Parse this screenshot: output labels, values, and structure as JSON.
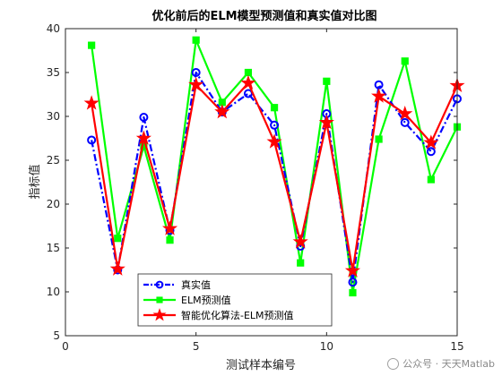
{
  "chart_data": {
    "type": "line",
    "title": "优化前后的ELM模型预测值和真实值对比图",
    "xlabel": "测试样本编号",
    "ylabel": "指标值",
    "xlim": [
      0,
      15
    ],
    "ylim": [
      5,
      40
    ],
    "xticks": [
      0,
      5,
      10,
      15
    ],
    "yticks": [
      5,
      10,
      15,
      20,
      25,
      30,
      35,
      40
    ],
    "grid": false,
    "legend_position": "bottom-center",
    "x": [
      1,
      2,
      3,
      4,
      5,
      6,
      7,
      8,
      9,
      10,
      11,
      12,
      13,
      14,
      15
    ],
    "series": [
      {
        "name": "真实值",
        "color": "#0000ff",
        "marker": "circle",
        "line": "dash-dot",
        "values": [
          27.3,
          12.5,
          29.9,
          17.0,
          35.0,
          30.5,
          32.6,
          29.0,
          15.2,
          30.3,
          11.1,
          33.6,
          29.3,
          26.0,
          32.0
        ]
      },
      {
        "name": "ELM预测值",
        "color": "#00ff00",
        "marker": "square",
        "line": "solid",
        "values": [
          38.1,
          16.1,
          26.6,
          15.9,
          38.7,
          31.6,
          35.0,
          31.0,
          13.3,
          34.0,
          9.9,
          27.4,
          36.3,
          22.8,
          28.8
        ]
      },
      {
        "name": "智能优化算法-ELM预测值",
        "color": "#ff0000",
        "marker": "star",
        "line": "solid",
        "values": [
          31.5,
          12.6,
          27.5,
          17.2,
          33.6,
          30.5,
          33.8,
          27.1,
          15.7,
          29.3,
          12.4,
          32.3,
          30.3,
          27.0,
          33.5
        ]
      }
    ]
  },
  "watermark": {
    "text": "公众号 · 天天Matlab",
    "icon": "wechat-icon"
  }
}
